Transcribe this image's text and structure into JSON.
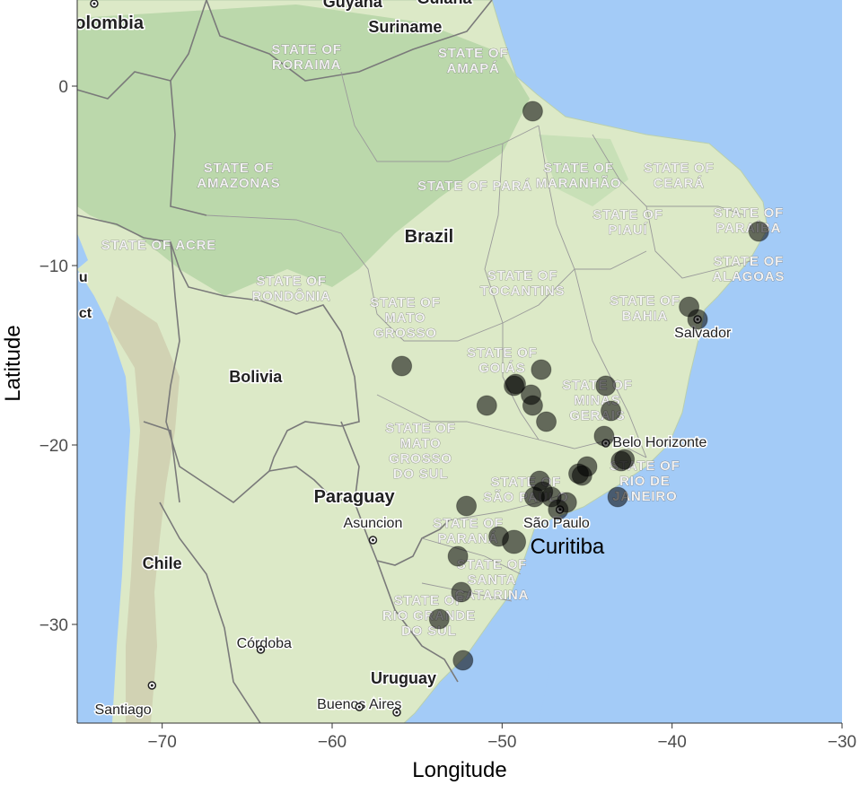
{
  "chart_data": {
    "type": "scatter",
    "title": "",
    "xlabel": "Longitude",
    "ylabel": "Latitude",
    "xlim": [
      -75,
      -30
    ],
    "ylim": [
      -35.5,
      4.8
    ],
    "x_ticks": [
      -70,
      -60,
      -50,
      -40,
      -30
    ],
    "y_ticks": [
      0,
      -10,
      -20,
      -30
    ],
    "x_tick_labels": [
      "−70",
      "−60",
      "−50",
      "−40",
      "−30"
    ],
    "y_tick_labels": [
      "0",
      "−10",
      "−20",
      "−30"
    ],
    "grid": false,
    "legend": "none",
    "colors": {
      "point": "#000000",
      "water": "#a3cbf7",
      "land": "#d9e8c3",
      "forest": "#b4d3a4",
      "border": "#7a7a7a"
    },
    "points": [
      {
        "lon": -48.2,
        "lat": -1.4,
        "size": 11
      },
      {
        "lon": -34.9,
        "lat": -8.1,
        "size": 11
      },
      {
        "lon": -39.0,
        "lat": -12.3,
        "size": 11
      },
      {
        "lon": -38.5,
        "lat": -13.0,
        "size": 11
      },
      {
        "lon": -55.9,
        "lat": -15.6,
        "size": 11
      },
      {
        "lon": -49.2,
        "lat": -16.6,
        "size": 11
      },
      {
        "lon": -49.3,
        "lat": -16.7,
        "size": 11
      },
      {
        "lon": -47.7,
        "lat": -15.8,
        "size": 11
      },
      {
        "lon": -48.3,
        "lat": -17.2,
        "size": 11
      },
      {
        "lon": -48.2,
        "lat": -17.8,
        "size": 11
      },
      {
        "lon": -50.9,
        "lat": -17.8,
        "size": 11
      },
      {
        "lon": -47.4,
        "lat": -18.7,
        "size": 11
      },
      {
        "lon": -43.9,
        "lat": -16.7,
        "size": 11
      },
      {
        "lon": -43.6,
        "lat": -18.1,
        "size": 11
      },
      {
        "lon": -44.0,
        "lat": -19.5,
        "size": 11
      },
      {
        "lon": -42.8,
        "lat": -20.8,
        "size": 11
      },
      {
        "lon": -43.0,
        "lat": -20.9,
        "size": 11
      },
      {
        "lon": -45.0,
        "lat": -21.2,
        "size": 11
      },
      {
        "lon": -45.3,
        "lat": -21.7,
        "size": 11
      },
      {
        "lon": -45.5,
        "lat": -21.6,
        "size": 11
      },
      {
        "lon": -47.8,
        "lat": -22.0,
        "size": 11
      },
      {
        "lon": -47.6,
        "lat": -22.6,
        "size": 11
      },
      {
        "lon": -47.1,
        "lat": -22.9,
        "size": 11
      },
      {
        "lon": -46.7,
        "lat": -23.6,
        "size": 11
      },
      {
        "lon": -46.2,
        "lat": -23.2,
        "size": 11
      },
      {
        "lon": -48.1,
        "lat": -22.9,
        "size": 11
      },
      {
        "lon": -43.2,
        "lat": -22.9,
        "size": 11
      },
      {
        "lon": -52.1,
        "lat": -23.4,
        "size": 11
      },
      {
        "lon": -50.2,
        "lat": -25.1,
        "size": 11
      },
      {
        "lon": -49.3,
        "lat": -25.4,
        "size": 13
      },
      {
        "lon": -52.6,
        "lat": -26.2,
        "size": 11
      },
      {
        "lon": -52.4,
        "lat": -28.2,
        "size": 11
      },
      {
        "lon": -53.7,
        "lat": -29.7,
        "size": 11
      },
      {
        "lon": -52.3,
        "lat": -32.0,
        "size": 11
      }
    ],
    "annotations": [
      {
        "text": "Curitiba",
        "lon": -49.3,
        "lat": -25.4
      }
    ]
  },
  "map_labels": {
    "countries": [
      {
        "text": "Colombia",
        "lon": -73.5,
        "lat": 3.2
      },
      {
        "text": "Guyana",
        "lon": -58.8,
        "lat": 4.4
      },
      {
        "text": "Guiana",
        "lon": -53.4,
        "lat": 4.6
      },
      {
        "text": "Suriname",
        "lon": -55.7,
        "lat": 3.0
      },
      {
        "text": "Brazil",
        "lon": -54.3,
        "lat": -8.7
      },
      {
        "text": "Bolivia",
        "lon": -64.5,
        "lat": -16.5
      },
      {
        "text": "Paraguay",
        "lon": -58.7,
        "lat": -23.2
      },
      {
        "text": "Chile",
        "lon": -70.0,
        "lat": -26.9
      },
      {
        "text": "Uruguay",
        "lon": -55.8,
        "lat": -33.3
      }
    ],
    "states": [
      {
        "lines": [
          "STATE OF",
          "RORAIMA"
        ],
        "lon": -61.5,
        "lat": 1.8
      },
      {
        "lines": [
          "STATE OF",
          "AMAPÁ"
        ],
        "lon": -51.7,
        "lat": 1.6
      },
      {
        "lines": [
          "STATE OF",
          "AMAZONAS"
        ],
        "lon": -65.5,
        "lat": -4.8
      },
      {
        "lines": [
          "STATE OF PARÁ"
        ],
        "lon": -51.6,
        "lat": -5.8
      },
      {
        "lines": [
          "STATE OF",
          "MARANHÃO"
        ],
        "lon": -45.5,
        "lat": -4.8
      },
      {
        "lines": [
          "STATE OF",
          "CEARÁ"
        ],
        "lon": -39.6,
        "lat": -4.8
      },
      {
        "lines": [
          "STATE OF",
          "PIAUÍ"
        ],
        "lon": -42.6,
        "lat": -7.4
      },
      {
        "lines": [
          "STATE OF",
          "PARAÍBA"
        ],
        "lon": -35.5,
        "lat": -7.3
      },
      {
        "lines": [
          "STATE OF",
          "ALAGOAS"
        ],
        "lon": -35.5,
        "lat": -10.0
      },
      {
        "lines": [
          "STATE OF ACRE"
        ],
        "lon": -70.2,
        "lat": -9.1
      },
      {
        "lines": [
          "STATE OF",
          "RONDÔNIA"
        ],
        "lon": -62.4,
        "lat": -11.1
      },
      {
        "lines": [
          "STATE OF",
          "TOCANTINS"
        ],
        "lon": -48.8,
        "lat": -10.8
      },
      {
        "lines": [
          "STATE OF",
          "MATO",
          "GROSSO"
        ],
        "lon": -55.7,
        "lat": -12.3
      },
      {
        "lines": [
          "STATE OF",
          "BAHIA"
        ],
        "lon": -41.6,
        "lat": -12.2
      },
      {
        "lines": [
          "STATE OF",
          "GOIÁS"
        ],
        "lon": -50.0,
        "lat": -15.1
      },
      {
        "lines": [
          "STATE OF",
          "MINAS",
          "GERAIS"
        ],
        "lon": -44.4,
        "lat": -16.9
      },
      {
        "lines": [
          "STATE OF",
          "MATO",
          "GROSSO",
          "DO SUL"
        ],
        "lon": -54.8,
        "lat": -19.3
      },
      {
        "lines": [
          "STATE OF",
          "RIO DE",
          "JANEIRO"
        ],
        "lon": -41.6,
        "lat": -21.4
      },
      {
        "lines": [
          "STATE OF",
          "SÃO PAULO"
        ],
        "lon": -48.6,
        "lat": -22.3
      },
      {
        "lines": [
          "STATE OF",
          "PARANÁ"
        ],
        "lon": -52.0,
        "lat": -24.6
      },
      {
        "lines": [
          "STATE OF",
          "SANTA",
          "CATARINA"
        ],
        "lon": -50.6,
        "lat": -26.9
      },
      {
        "lines": [
          "STATE OF",
          "RIO GRANDE",
          "DO SUL"
        ],
        "lon": -54.3,
        "lat": -28.9
      }
    ],
    "cities": [
      {
        "text": "Salvador",
        "lon": -38.2,
        "lat": -14.0,
        "anchor": "middle"
      },
      {
        "text": "Belo Horizonte",
        "lon": -43.5,
        "lat": -20.1,
        "anchor": "start"
      },
      {
        "text": "São Paulo",
        "lon": -46.8,
        "lat": -24.6,
        "anchor": "middle"
      },
      {
        "text": "Asuncion",
        "lon": -57.6,
        "lat": -24.6,
        "anchor": "middle"
      },
      {
        "text": "Córdoba",
        "lon": -64.0,
        "lat": -31.3,
        "anchor": "middle"
      },
      {
        "text": "Buenos Aires",
        "lon": -58.4,
        "lat": -34.7,
        "anchor": "middle"
      },
      {
        "text": "Santiago",
        "lon": -72.3,
        "lat": -35.0,
        "anchor": "middle"
      }
    ],
    "partial": [
      {
        "text": "u",
        "lon": -74.9,
        "lat": -10.9
      },
      {
        "text": "ct",
        "lon": -74.9,
        "lat": -12.9
      }
    ]
  }
}
